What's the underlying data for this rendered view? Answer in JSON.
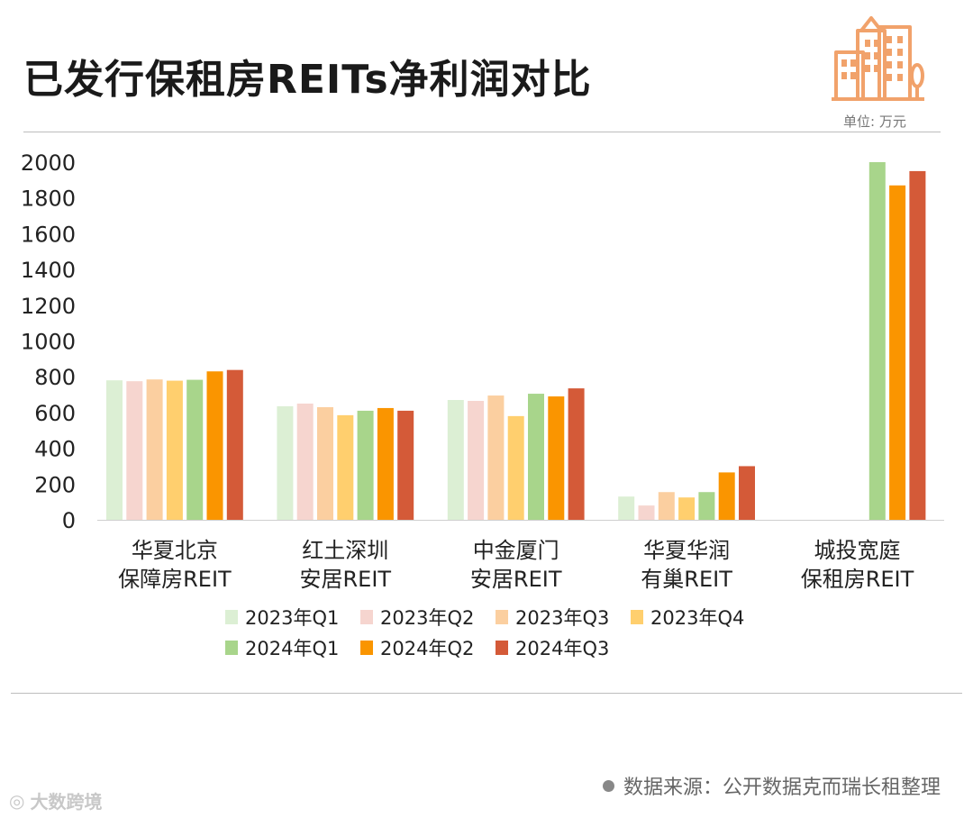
{
  "title": "已发行保租房REITs净利润对比",
  "unit_label": "单位: 万元",
  "source_text": "数据来源：公开数据克而瑞长租整理",
  "watermark_text": "大数跨境",
  "colors": {
    "2023Q1": "#dcefd4",
    "2023Q2": "#f6d5cf",
    "2023Q3": "#fbcfa0",
    "2023Q4": "#ffcf6e",
    "2024Q1": "#a8d58b",
    "2024Q2": "#fa9500",
    "2024Q3": "#d45a38",
    "icon": "#f1a26b"
  },
  "chart_data": {
    "type": "bar",
    "title": "已发行保租房REITs净利润对比",
    "ylabel": "单位: 万元",
    "ylim": [
      0,
      2000
    ],
    "yticks": [
      0,
      200,
      400,
      600,
      800,
      1000,
      1200,
      1400,
      1600,
      1800,
      2000
    ],
    "categories": [
      [
        "华夏北京",
        "保障房REIT"
      ],
      [
        "红土深圳",
        "安居REIT"
      ],
      [
        "中金厦门",
        "安居REIT"
      ],
      [
        "华夏华润",
        "有巢REIT"
      ],
      [
        "城投宽庭",
        "保租房REIT"
      ]
    ],
    "series": [
      {
        "name": "2023年Q1",
        "values": [
          780,
          635,
          670,
          130,
          null
        ]
      },
      {
        "name": "2023年Q2",
        "values": [
          775,
          650,
          665,
          80,
          null
        ]
      },
      {
        "name": "2023年Q3",
        "values": [
          785,
          630,
          695,
          155,
          null
        ]
      },
      {
        "name": "2023年Q4",
        "values": [
          778,
          585,
          580,
          125,
          null
        ]
      },
      {
        "name": "2024年Q1",
        "values": [
          783,
          610,
          705,
          155,
          2000
        ]
      },
      {
        "name": "2024年Q2",
        "values": [
          830,
          625,
          690,
          265,
          1870
        ]
      },
      {
        "name": "2024年Q3",
        "values": [
          838,
          610,
          735,
          300,
          1950
        ]
      }
    ],
    "legend_position": "bottom-center"
  }
}
